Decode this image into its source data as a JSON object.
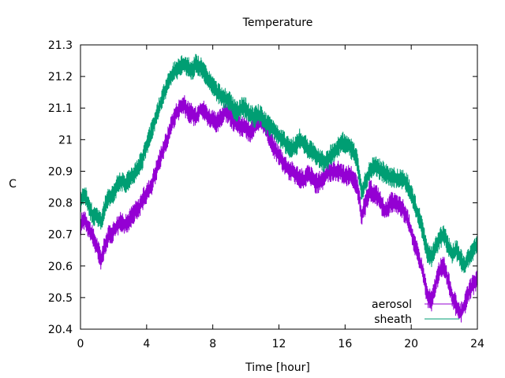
{
  "chart_data": {
    "type": "line",
    "title": "Temperature",
    "xlabel": "Time [hour]",
    "ylabel": "C",
    "xlim": [
      0,
      24
    ],
    "ylim": [
      20.4,
      21.3
    ],
    "xticks": [
      0,
      4,
      8,
      12,
      16,
      20,
      24
    ],
    "yticks": [
      20.4,
      20.5,
      20.6,
      20.7,
      20.8,
      20.9,
      21.0,
      21.1,
      21.2,
      21.3
    ],
    "xtick_labels": [
      "0",
      "4",
      "8",
      "12",
      "16",
      "20",
      "24"
    ],
    "ytick_labels": [
      "20.4",
      "20.5",
      "20.6",
      "20.7",
      "20.8",
      "20.9",
      "21",
      "21.1",
      "21.2",
      "21.3"
    ],
    "grid": false,
    "legend_position": "bottom-right",
    "series": [
      {
        "name": "aerosol",
        "color": "#9400d3",
        "x": [
          0.0,
          0.25,
          0.5,
          0.75,
          1.0,
          1.25,
          1.5,
          1.75,
          2.0,
          2.25,
          2.5,
          2.75,
          3.0,
          3.25,
          3.5,
          3.75,
          4.0,
          4.25,
          4.5,
          4.75,
          5.0,
          5.25,
          5.5,
          5.75,
          6.0,
          6.25,
          6.5,
          6.75,
          7.0,
          7.25,
          7.5,
          7.75,
          8.0,
          8.25,
          8.5,
          8.75,
          9.0,
          9.25,
          9.5,
          9.75,
          10.0,
          10.25,
          10.5,
          10.75,
          11.0,
          11.25,
          11.5,
          11.75,
          12.0,
          12.25,
          12.5,
          12.75,
          13.0,
          13.25,
          13.5,
          13.75,
          14.0,
          14.25,
          14.5,
          14.75,
          15.0,
          15.25,
          15.5,
          15.75,
          16.0,
          16.25,
          16.5,
          16.75,
          17.0,
          17.25,
          17.5,
          17.75,
          18.0,
          18.25,
          18.5,
          18.75,
          19.0,
          19.25,
          19.5,
          19.75,
          20.0,
          20.25,
          20.5,
          20.75,
          21.0,
          21.25,
          21.5,
          21.75,
          22.0,
          22.25,
          22.5,
          22.75,
          23.0,
          23.25,
          23.5,
          23.75,
          24.0
        ],
        "y": [
          20.73,
          20.75,
          20.72,
          20.69,
          20.66,
          20.62,
          20.67,
          20.7,
          20.71,
          20.73,
          20.74,
          20.73,
          20.75,
          20.77,
          20.78,
          20.81,
          20.83,
          20.85,
          20.89,
          20.93,
          20.97,
          21.0,
          21.05,
          21.08,
          21.1,
          21.11,
          21.09,
          21.08,
          21.07,
          21.1,
          21.09,
          21.07,
          21.06,
          21.05,
          21.07,
          21.09,
          21.08,
          21.06,
          21.05,
          21.04,
          21.04,
          21.02,
          21.04,
          21.05,
          21.06,
          21.03,
          21.0,
          20.97,
          20.95,
          20.93,
          20.91,
          20.9,
          20.89,
          20.88,
          20.87,
          20.89,
          20.88,
          20.86,
          20.87,
          20.88,
          20.9,
          20.9,
          20.9,
          20.9,
          20.88,
          20.89,
          20.88,
          20.85,
          20.76,
          20.8,
          20.84,
          20.83,
          20.82,
          20.79,
          20.77,
          20.8,
          20.8,
          20.79,
          20.78,
          20.75,
          20.71,
          20.66,
          20.62,
          20.57,
          20.5,
          20.49,
          20.55,
          20.59,
          20.6,
          20.55,
          20.5,
          20.47,
          20.45,
          20.48,
          20.52,
          20.54,
          20.56
        ]
      },
      {
        "name": "sheath",
        "color": "#009e73",
        "x": [
          0.0,
          0.25,
          0.5,
          0.75,
          1.0,
          1.25,
          1.5,
          1.75,
          2.0,
          2.25,
          2.5,
          2.75,
          3.0,
          3.25,
          3.5,
          3.75,
          4.0,
          4.25,
          4.5,
          4.75,
          5.0,
          5.25,
          5.5,
          5.75,
          6.0,
          6.25,
          6.5,
          6.75,
          7.0,
          7.25,
          7.5,
          7.75,
          8.0,
          8.25,
          8.5,
          8.75,
          9.0,
          9.25,
          9.5,
          9.75,
          10.0,
          10.25,
          10.5,
          10.75,
          11.0,
          11.25,
          11.5,
          11.75,
          12.0,
          12.25,
          12.5,
          12.75,
          13.0,
          13.25,
          13.5,
          13.75,
          14.0,
          14.25,
          14.5,
          14.75,
          15.0,
          15.25,
          15.5,
          15.75,
          16.0,
          16.25,
          16.5,
          16.75,
          17.0,
          17.25,
          17.5,
          17.75,
          18.0,
          18.25,
          18.5,
          18.75,
          19.0,
          19.25,
          19.5,
          19.75,
          20.0,
          20.25,
          20.5,
          20.75,
          21.0,
          21.25,
          21.5,
          21.75,
          22.0,
          22.25,
          22.5,
          22.75,
          23.0,
          23.25,
          23.5,
          23.75,
          24.0
        ],
        "y": [
          20.8,
          20.83,
          20.79,
          20.76,
          20.76,
          20.74,
          20.79,
          20.82,
          20.83,
          20.86,
          20.87,
          20.86,
          20.88,
          20.89,
          20.91,
          20.94,
          20.98,
          21.02,
          21.06,
          21.1,
          21.14,
          21.17,
          21.2,
          21.22,
          21.23,
          21.24,
          21.23,
          21.22,
          21.24,
          21.23,
          21.21,
          21.19,
          21.17,
          21.15,
          21.14,
          21.13,
          21.12,
          21.1,
          21.09,
          21.1,
          21.1,
          21.08,
          21.07,
          21.08,
          21.07,
          21.05,
          21.04,
          21.03,
          21.01,
          21.0,
          20.98,
          20.97,
          20.98,
          21.0,
          20.99,
          20.97,
          20.96,
          20.95,
          20.94,
          20.93,
          20.94,
          20.96,
          20.97,
          20.99,
          20.99,
          20.98,
          20.96,
          20.93,
          20.83,
          20.87,
          20.9,
          20.92,
          20.91,
          20.9,
          20.89,
          20.88,
          20.88,
          20.87,
          20.88,
          20.86,
          20.83,
          20.79,
          20.75,
          20.7,
          20.64,
          20.63,
          20.66,
          20.69,
          20.7,
          20.66,
          20.64,
          20.65,
          20.62,
          20.6,
          20.63,
          20.65,
          20.67
        ]
      }
    ]
  }
}
